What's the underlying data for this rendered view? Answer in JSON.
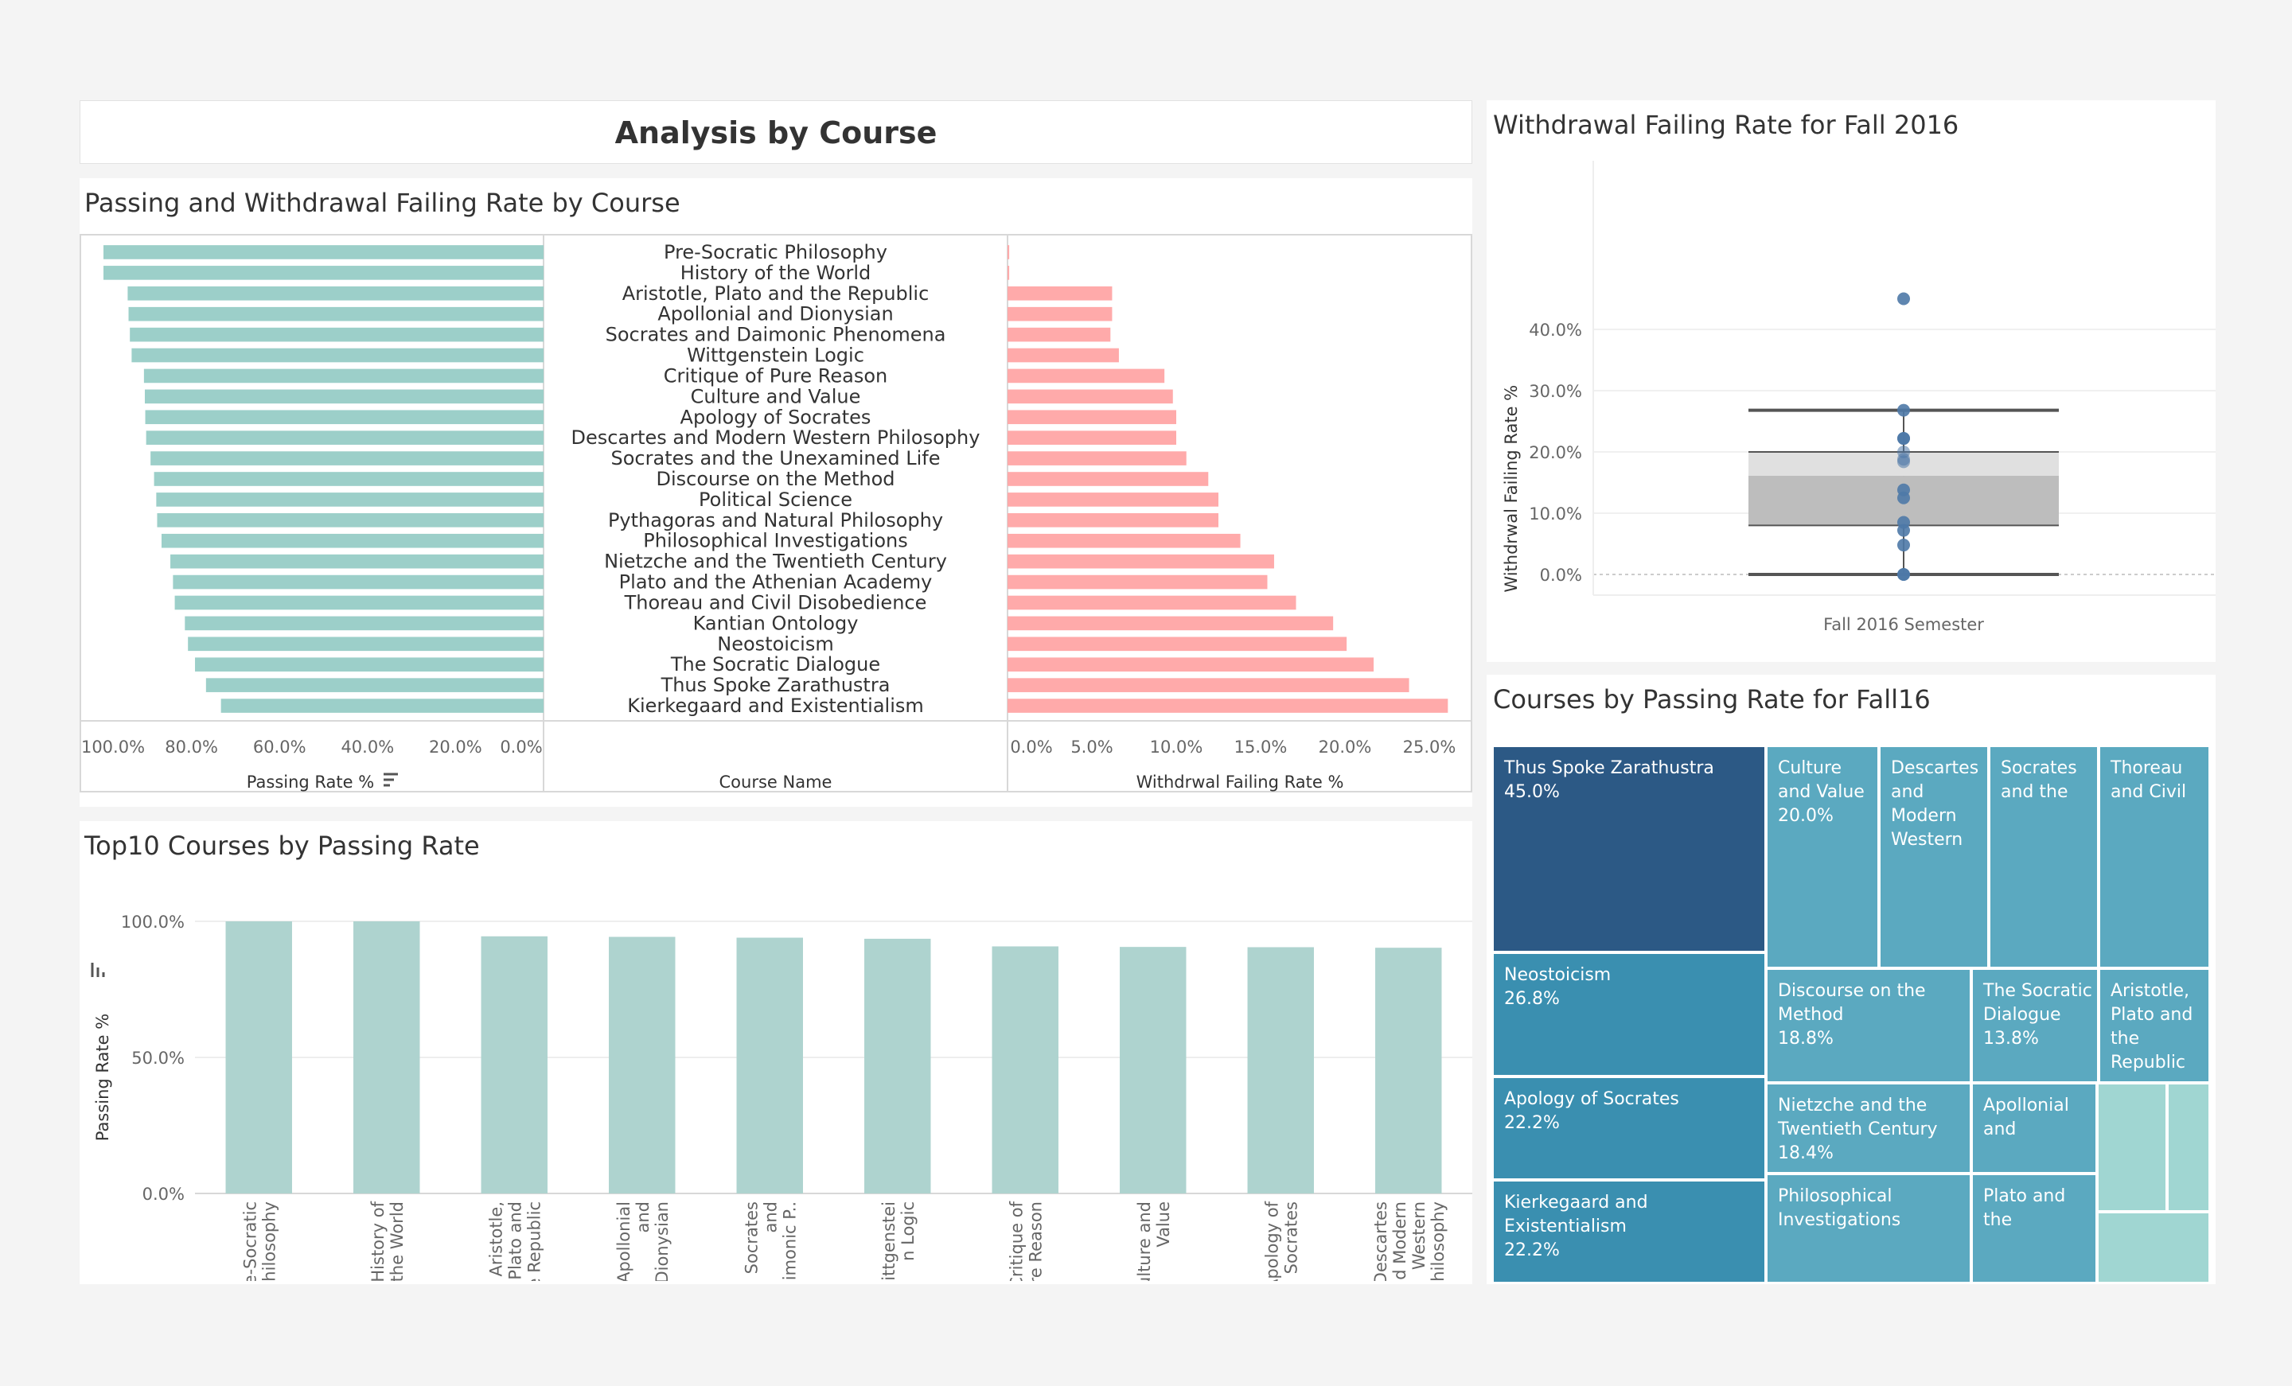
{
  "dashboard": {
    "title": "Analysis by Course"
  },
  "colors": {
    "passing": "#9ccfc9",
    "withdrawal": "#ffaaaa",
    "top10": "#aed3cf",
    "box_dot": "#4e79a7",
    "tm_dark": "#2c5985",
    "tm_mid": "#3a8fb0",
    "tm_light": "#5ba9c0",
    "tm_pale": "#a0d6d2"
  },
  "panels": {
    "passing_withdrawal_title": "Passing and Withdrawal Failing Rate by Course",
    "top10_title": "Top10 Courses by Passing Rate",
    "box_title": "Withdrawal Failing Rate for Fall 2016",
    "treemap_title": "Courses by Passing Rate for Fall16"
  },
  "chart_data": [
    {
      "id": "passing_withdrawal",
      "type": "bar",
      "orientation": "horizontal",
      "categories": [
        "Pre-Socratic Philosophy",
        "History of the World",
        "Aristotle, Plato and the Republic",
        "Apollonial and Dionysian",
        "Socrates and Daimonic Phenomena",
        "Wittgenstein Logic",
        "Critique of Pure Reason",
        "Culture and Value",
        "Apology of Socrates",
        "Descartes and Modern Western Philosophy",
        "Socrates and the Unexamined Life",
        "Discourse on the Method",
        "Political Science",
        "Pythagoras and Natural Philosophy",
        "Philosophical Investigations",
        "Nietzche and the Twentieth Century",
        "Plato and the Athenian Academy",
        "Thoreau and Civil Disobedience",
        "Kantian Ontology",
        "Neostoicism",
        "The Socratic Dialogue",
        "Thus Spoke Zarathustra",
        "Kierkegaard and Existentialism"
      ],
      "series": [
        {
          "name": "Passing Rate %",
          "values": [
            100.0,
            100.0,
            94.5,
            94.3,
            94.0,
            93.6,
            90.8,
            90.6,
            90.5,
            90.3,
            89.3,
            88.5,
            88.0,
            87.8,
            86.8,
            84.8,
            84.2,
            83.8,
            81.5,
            80.8,
            79.2,
            76.7,
            73.3
          ]
        },
        {
          "name": "Withdrwal Failing Rate %",
          "values": [
            0.1,
            0.1,
            6.2,
            6.2,
            6.1,
            6.6,
            9.3,
            9.8,
            10.0,
            10.0,
            10.6,
            11.9,
            12.5,
            12.5,
            13.8,
            15.8,
            15.4,
            17.1,
            19.3,
            20.1,
            21.7,
            23.8,
            26.1
          ]
        }
      ],
      "passing_axis": {
        "title": "Passing Rate %",
        "ticks": [
          "100.0%",
          "80.0%",
          "60.0%",
          "40.0%",
          "20.0%",
          "0.0%"
        ],
        "range": [
          100,
          0
        ]
      },
      "category_axis_title": "Course Name",
      "withdrawal_axis": {
        "title": "Withdrwal Failing Rate %",
        "ticks": [
          "0.0%",
          "5.0%",
          "10.0%",
          "15.0%",
          "20.0%",
          "25.0%"
        ],
        "range": [
          0,
          25
        ]
      }
    },
    {
      "id": "top10",
      "type": "bar",
      "categories": [
        "Pre-Socratic Philosophy",
        "History of the World",
        "Aristotle, Plato and the Republic",
        "Apollonial and Dionysian",
        "Socrates and Daimonic P..",
        "Wittgenstein Logic",
        "Critique of Pure Reason",
        "Culture and Value",
        "Apology of Socrates",
        "Descartes and Modern Western Philosophy"
      ],
      "category_lines": [
        [
          "Pre-Socratic",
          "Philosophy"
        ],
        [
          "History of",
          "the World"
        ],
        [
          "Aristotle,",
          "Plato and",
          "the Republic"
        ],
        [
          "Apollonial",
          "and",
          "Dionysian"
        ],
        [
          "Socrates",
          "and",
          "Daimonic P.."
        ],
        [
          "Wittgenstei",
          "n Logic"
        ],
        [
          "Critique of",
          "Pure Reason"
        ],
        [
          "Culture and",
          "Value"
        ],
        [
          "Apology of",
          "Socrates"
        ],
        [
          "Descartes",
          "and Modern",
          "Western",
          "Philosophy"
        ]
      ],
      "values": [
        100.0,
        100.0,
        94.5,
        94.3,
        94.0,
        93.6,
        90.8,
        90.6,
        90.5,
        90.3
      ],
      "ylabel": "Passing Rate %",
      "yticks": [
        "100.0%",
        "50.0%",
        "0.0%"
      ],
      "ylim": [
        0,
        100
      ]
    },
    {
      "id": "boxplot",
      "type": "scatter",
      "category": "Fall 2016 Semester",
      "ylabel": "Withdrwal Failing Rate %",
      "yticks": [
        "40.0%",
        "30.0%",
        "20.0%",
        "10.0%",
        "0.0%"
      ],
      "ylim": [
        0,
        45
      ],
      "points": [
        45.0,
        26.8,
        22.2,
        22.2,
        20.0,
        18.8,
        18.4,
        13.8,
        12.5,
        8.5,
        7.2,
        4.8,
        0.0,
        0.0
      ],
      "box": {
        "whisker_low": 0.0,
        "q1": 8.0,
        "median": 16.1,
        "q3": 20.0,
        "whisker_high": 26.8
      }
    },
    {
      "id": "treemap",
      "type": "treemap",
      "items": [
        {
          "name": "Thus Spoke Zarathustra",
          "lines": [
            "Thus Spoke Zarathustra"
          ],
          "value": "45.0%",
          "tone": "tm_dark"
        },
        {
          "name": "Neostoicism",
          "lines": [
            "Neostoicism"
          ],
          "value": "26.8%",
          "tone": "tm_mid"
        },
        {
          "name": "Apology of Socrates",
          "lines": [
            "Apology of Socrates"
          ],
          "value": "22.2%",
          "tone": "tm_mid"
        },
        {
          "name": "Kierkegaard and Existentialism",
          "lines": [
            "Kierkegaard and",
            "Existentialism"
          ],
          "value": "22.2%",
          "tone": "tm_mid"
        },
        {
          "name": "Culture and Value",
          "lines": [
            "Culture",
            "and Value"
          ],
          "value": "20.0%",
          "tone": "tm_light"
        },
        {
          "name": "Descartes and Modern Western",
          "lines": [
            "Descartes",
            "and",
            "Modern",
            "Western"
          ],
          "value": "",
          "tone": "tm_light"
        },
        {
          "name": "Socrates and the",
          "lines": [
            "Socrates",
            "and the"
          ],
          "value": "",
          "tone": "tm_light"
        },
        {
          "name": "Thoreau and Civil",
          "lines": [
            "Thoreau",
            "and Civil"
          ],
          "value": "",
          "tone": "tm_light"
        },
        {
          "name": "Discourse on the Method",
          "lines": [
            "Discourse on the",
            "Method"
          ],
          "value": "18.8%",
          "tone": "tm_light"
        },
        {
          "name": "The Socratic Dialogue",
          "lines": [
            "The Socratic",
            "Dialogue"
          ],
          "value": "13.8%",
          "tone": "tm_light"
        },
        {
          "name": "Aristotle, Plato and the Republic",
          "lines": [
            "Aristotle,",
            "Plato and",
            "the",
            "Republic"
          ],
          "value": "",
          "tone": "tm_light"
        },
        {
          "name": "Nietzche and the Twentieth Century",
          "lines": [
            "Nietzche and the",
            "Twentieth Century"
          ],
          "value": "18.4%",
          "tone": "tm_light"
        },
        {
          "name": "Apollonial and",
          "lines": [
            "Apollonial",
            "and"
          ],
          "value": "",
          "tone": "tm_light"
        },
        {
          "name": "Philosophical Investigations",
          "lines": [
            "Philosophical",
            "Investigations"
          ],
          "value": "",
          "tone": "tm_light"
        },
        {
          "name": "Plato and the",
          "lines": [
            "Plato and",
            "the"
          ],
          "value": "",
          "tone": "tm_light"
        },
        {
          "name": "",
          "lines": [],
          "value": "",
          "tone": "tm_pale"
        },
        {
          "name": "",
          "lines": [],
          "value": "",
          "tone": "tm_pale"
        },
        {
          "name": "",
          "lines": [],
          "value": "",
          "tone": "tm_pale"
        }
      ]
    }
  ]
}
